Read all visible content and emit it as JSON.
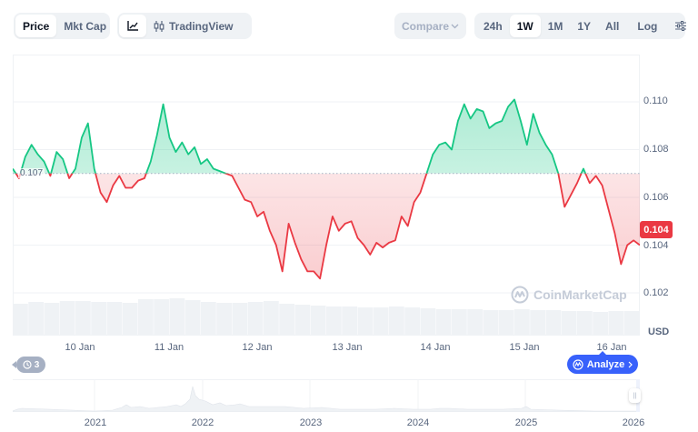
{
  "toolbar": {
    "type_tabs": [
      {
        "label": "Price",
        "active": true
      },
      {
        "label": "Mkt Cap",
        "active": false
      }
    ],
    "view_tabs": [
      {
        "icon": "line-chart-icon",
        "active": true
      },
      {
        "label": "TradingView",
        "icon": "candlestick-icon",
        "active": false
      }
    ],
    "compare": {
      "label": "Compare",
      "icon": "chevron-down-icon"
    },
    "ranges": [
      {
        "label": "24h",
        "active": false
      },
      {
        "label": "1W",
        "active": true
      },
      {
        "label": "1M",
        "active": false
      },
      {
        "label": "1Y",
        "active": false
      },
      {
        "label": "All",
        "active": false
      }
    ],
    "log_label": "Log",
    "settings_icon": "sliders-icon"
  },
  "chart": {
    "reference_price": "0.107",
    "current_price": "0.104",
    "currency": "USD",
    "watermark": "CoinMarketCap",
    "y_ticks": [
      "0.110",
      "0.108",
      "0.106",
      "0.104",
      "0.102"
    ],
    "x_ticks": [
      "10 Jan",
      "11 Jan",
      "12 Jan",
      "13 Jan",
      "14 Jan",
      "15 Jan",
      "16 Jan"
    ],
    "colors": {
      "up": "#16c784",
      "down": "#ea3943",
      "accent": "#3861fb"
    }
  },
  "history_badge": {
    "count": "3",
    "icon": "history-icon"
  },
  "analyze": {
    "label": "Analyze",
    "icon": "cmc-ai-icon"
  },
  "navigator": {
    "years": [
      "2021",
      "2022",
      "2023",
      "2024",
      "2025",
      "2026"
    ]
  },
  "chart_data": {
    "type": "line",
    "title": "Price (1W)",
    "xlabel": "",
    "ylabel": "USD",
    "ylim": [
      0.1012,
      0.1111
    ],
    "baseline": 0.107,
    "grid": true,
    "legend": "none",
    "categories": [
      "10 Jan",
      "11 Jan",
      "12 Jan",
      "13 Jan",
      "14 Jan",
      "15 Jan",
      "16 Jan"
    ],
    "x": [
      0,
      0.01,
      0.02,
      0.03,
      0.04,
      0.05,
      0.06,
      0.07,
      0.08,
      0.09,
      0.1,
      0.11,
      0.12,
      0.13,
      0.14,
      0.15,
      0.16,
      0.17,
      0.18,
      0.19,
      0.2,
      0.21,
      0.22,
      0.23,
      0.24,
      0.25,
      0.26,
      0.27,
      0.28,
      0.29,
      0.3,
      0.31,
      0.32,
      0.33,
      0.34,
      0.35,
      0.36,
      0.37,
      0.38,
      0.39,
      0.4,
      0.41,
      0.42,
      0.43,
      0.44,
      0.45,
      0.46,
      0.47,
      0.48,
      0.49,
      0.5,
      0.51,
      0.52,
      0.53,
      0.54,
      0.55,
      0.56,
      0.57,
      0.58,
      0.59,
      0.6,
      0.61,
      0.62,
      0.63,
      0.64,
      0.65,
      0.66,
      0.67,
      0.68,
      0.69,
      0.7,
      0.71,
      0.72,
      0.73,
      0.74,
      0.75,
      0.76,
      0.77,
      0.78,
      0.79,
      0.8,
      0.81,
      0.82,
      0.83,
      0.84,
      0.85,
      0.86,
      0.87,
      0.88,
      0.89,
      0.9,
      0.91,
      0.92,
      0.93,
      0.94,
      0.95,
      0.96,
      0.97,
      0.98,
      0.99,
      1.0
    ],
    "series": [
      {
        "name": "Price",
        "values": [
          0.1072,
          0.1068,
          0.1077,
          0.1082,
          0.1078,
          0.1075,
          0.1069,
          0.1079,
          0.1076,
          0.1068,
          0.1072,
          0.1085,
          0.1091,
          0.1072,
          0.1062,
          0.1058,
          0.1065,
          0.1069,
          0.1064,
          0.1064,
          0.1067,
          0.1068,
          0.1075,
          0.1086,
          0.1099,
          0.1085,
          0.1079,
          0.1083,
          0.1078,
          0.1081,
          0.1074,
          0.1076,
          0.1072,
          0.1071,
          0.107,
          0.1069,
          0.1064,
          0.1059,
          0.1058,
          0.1052,
          0.1054,
          0.1046,
          0.104,
          0.1029,
          0.1049,
          0.1041,
          0.1034,
          0.1029,
          0.1029,
          0.1026,
          0.104,
          0.1052,
          0.1046,
          0.1049,
          0.105,
          0.1043,
          0.104,
          0.1036,
          0.1041,
          0.1039,
          0.1041,
          0.1042,
          0.1052,
          0.1048,
          0.1058,
          0.1062,
          0.107,
          0.1078,
          0.1082,
          0.1083,
          0.108,
          0.1092,
          0.1099,
          0.1093,
          0.1097,
          0.1096,
          0.1089,
          0.1091,
          0.1092,
          0.1098,
          0.1101,
          0.1092,
          0.1082,
          0.1095,
          0.1087,
          0.1082,
          0.1078,
          0.107,
          0.1056,
          0.1061,
          0.1066,
          0.1072,
          0.1066,
          0.1069,
          0.1065,
          0.1055,
          0.1045,
          0.1032,
          0.104,
          0.1042,
          0.104
        ]
      }
    ]
  }
}
